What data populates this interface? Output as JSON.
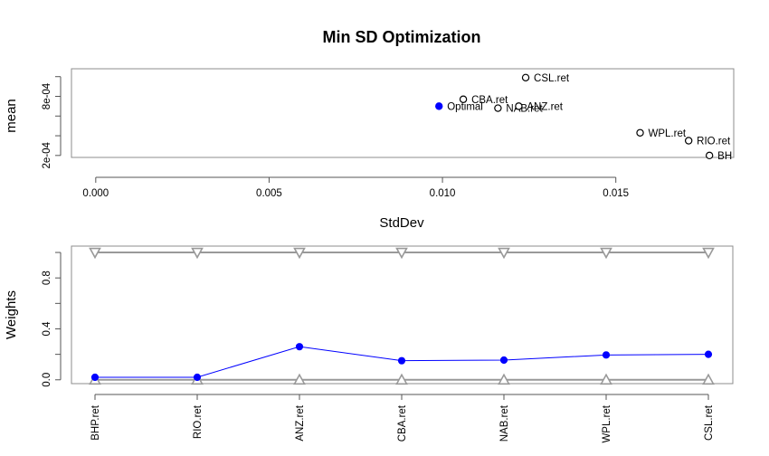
{
  "chart_data": [
    {
      "type": "scatter",
      "title": "Min SD Optimization",
      "xlabel": "StdDev",
      "ylabel": "mean",
      "xlim": [
        -0.0007,
        0.0184
      ],
      "ylim": [
        0.00018,
        0.00108
      ],
      "x_ticks": [
        0.0,
        0.005,
        0.01,
        0.015
      ],
      "x_tick_labels": [
        "0.000",
        "0.005",
        "0.010",
        "0.015"
      ],
      "y_ticks": [
        0.0002,
        0.0004,
        0.0006,
        0.0008,
        0.001
      ],
      "y_tick_labels": [
        "2e-04",
        "",
        "",
        "8e-04",
        ""
      ],
      "points": [
        {
          "label": "CSL.ret",
          "x": 0.0124,
          "y": 0.00099,
          "marker": "open-circle",
          "color": "#000000"
        },
        {
          "label": "CBA.ret",
          "x": 0.0106,
          "y": 0.00077,
          "marker": "open-circle",
          "color": "#000000"
        },
        {
          "label": "NAB.ret",
          "x": 0.0116,
          "y": 0.00068,
          "marker": "open-circle",
          "color": "#000000"
        },
        {
          "label": "ANZ.ret",
          "x": 0.0122,
          "y": 0.0007,
          "marker": "open-circle",
          "color": "#000000"
        },
        {
          "label": "WPL.ret",
          "x": 0.0157,
          "y": 0.00043,
          "marker": "open-circle",
          "color": "#000000"
        },
        {
          "label": "RIO.ret",
          "x": 0.0171,
          "y": 0.00035,
          "marker": "open-circle",
          "color": "#000000"
        },
        {
          "label": "BH",
          "x": 0.0177,
          "y": 0.0002,
          "marker": "open-circle",
          "color": "#000000"
        },
        {
          "label": "Optimal",
          "x": 0.0099,
          "y": 0.0007,
          "marker": "filled-circle",
          "color": "#0000ff"
        }
      ],
      "grid": false
    },
    {
      "type": "line",
      "xlabel": "",
      "ylabel": "Weights",
      "ylim": [
        -0.03,
        1.05
      ],
      "y_ticks": [
        0.0,
        0.2,
        0.4,
        0.6,
        0.8,
        1.0
      ],
      "y_tick_labels": [
        "0.0",
        "",
        "0.4",
        "",
        "0.8",
        ""
      ],
      "categories": [
        "BHP.ret",
        "RIO.ret",
        "ANZ.ret",
        "CBA.ret",
        "NAB.ret",
        "WPL.ret",
        "CSL.ret"
      ],
      "weights": [
        0.02,
        0.02,
        0.26,
        0.15,
        0.155,
        0.195,
        0.2
      ],
      "upper_bounds": [
        1,
        1,
        1,
        1,
        1,
        1,
        1
      ],
      "lower_bounds": [
        0,
        0,
        0,
        0,
        0,
        0,
        0
      ],
      "weights_color": "#0000ff",
      "bounds_color": "#999999",
      "grid": false
    }
  ]
}
